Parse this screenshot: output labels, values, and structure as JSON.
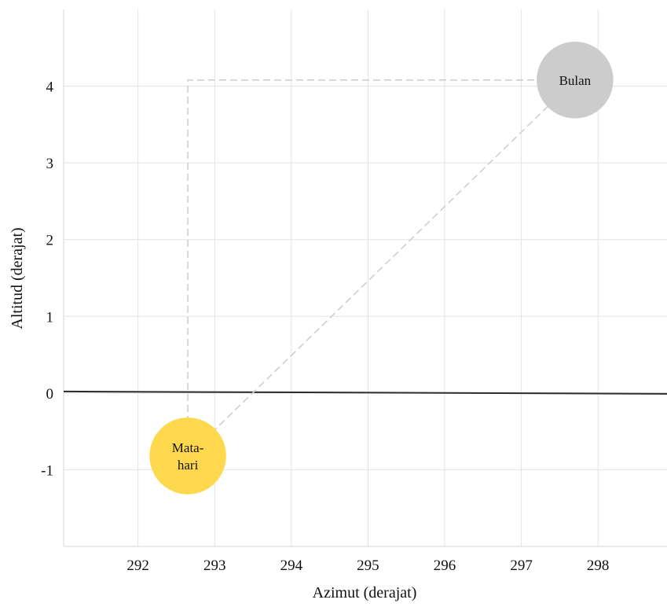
{
  "chart_data": {
    "type": "scatter",
    "xlabel": "Azimut (derajat)",
    "ylabel": "Altitud (derajat)",
    "xlim": [
      291.03,
      298.9
    ],
    "ylim": [
      -2.0,
      5.0
    ],
    "x_ticks": [
      292,
      293,
      294,
      295,
      296,
      297,
      298
    ],
    "y_ticks": [
      4,
      3,
      2,
      1,
      0,
      -1
    ],
    "grid": true,
    "horizon": {
      "points": [
        [
          291.03,
          0.02
        ],
        [
          298.9,
          -0.01
        ]
      ],
      "color": "#2b2b2b"
    },
    "bodies": [
      {
        "id": "sun",
        "label_lines": [
          "Mata-",
          "hari"
        ],
        "x": 292.65,
        "y": -0.82,
        "radius": 0.5,
        "color": "#ffd84d"
      },
      {
        "id": "moon",
        "label_lines": [
          "Bulan"
        ],
        "x": 297.7,
        "y": 4.08,
        "radius": 0.5,
        "color": "#cccccc"
      }
    ],
    "guides": {
      "style": "dashed",
      "color": "#cfcfcf",
      "elbow": {
        "from": "sun",
        "to": "moon"
      },
      "direct": {
        "from": "sun",
        "to": "moon"
      }
    }
  }
}
